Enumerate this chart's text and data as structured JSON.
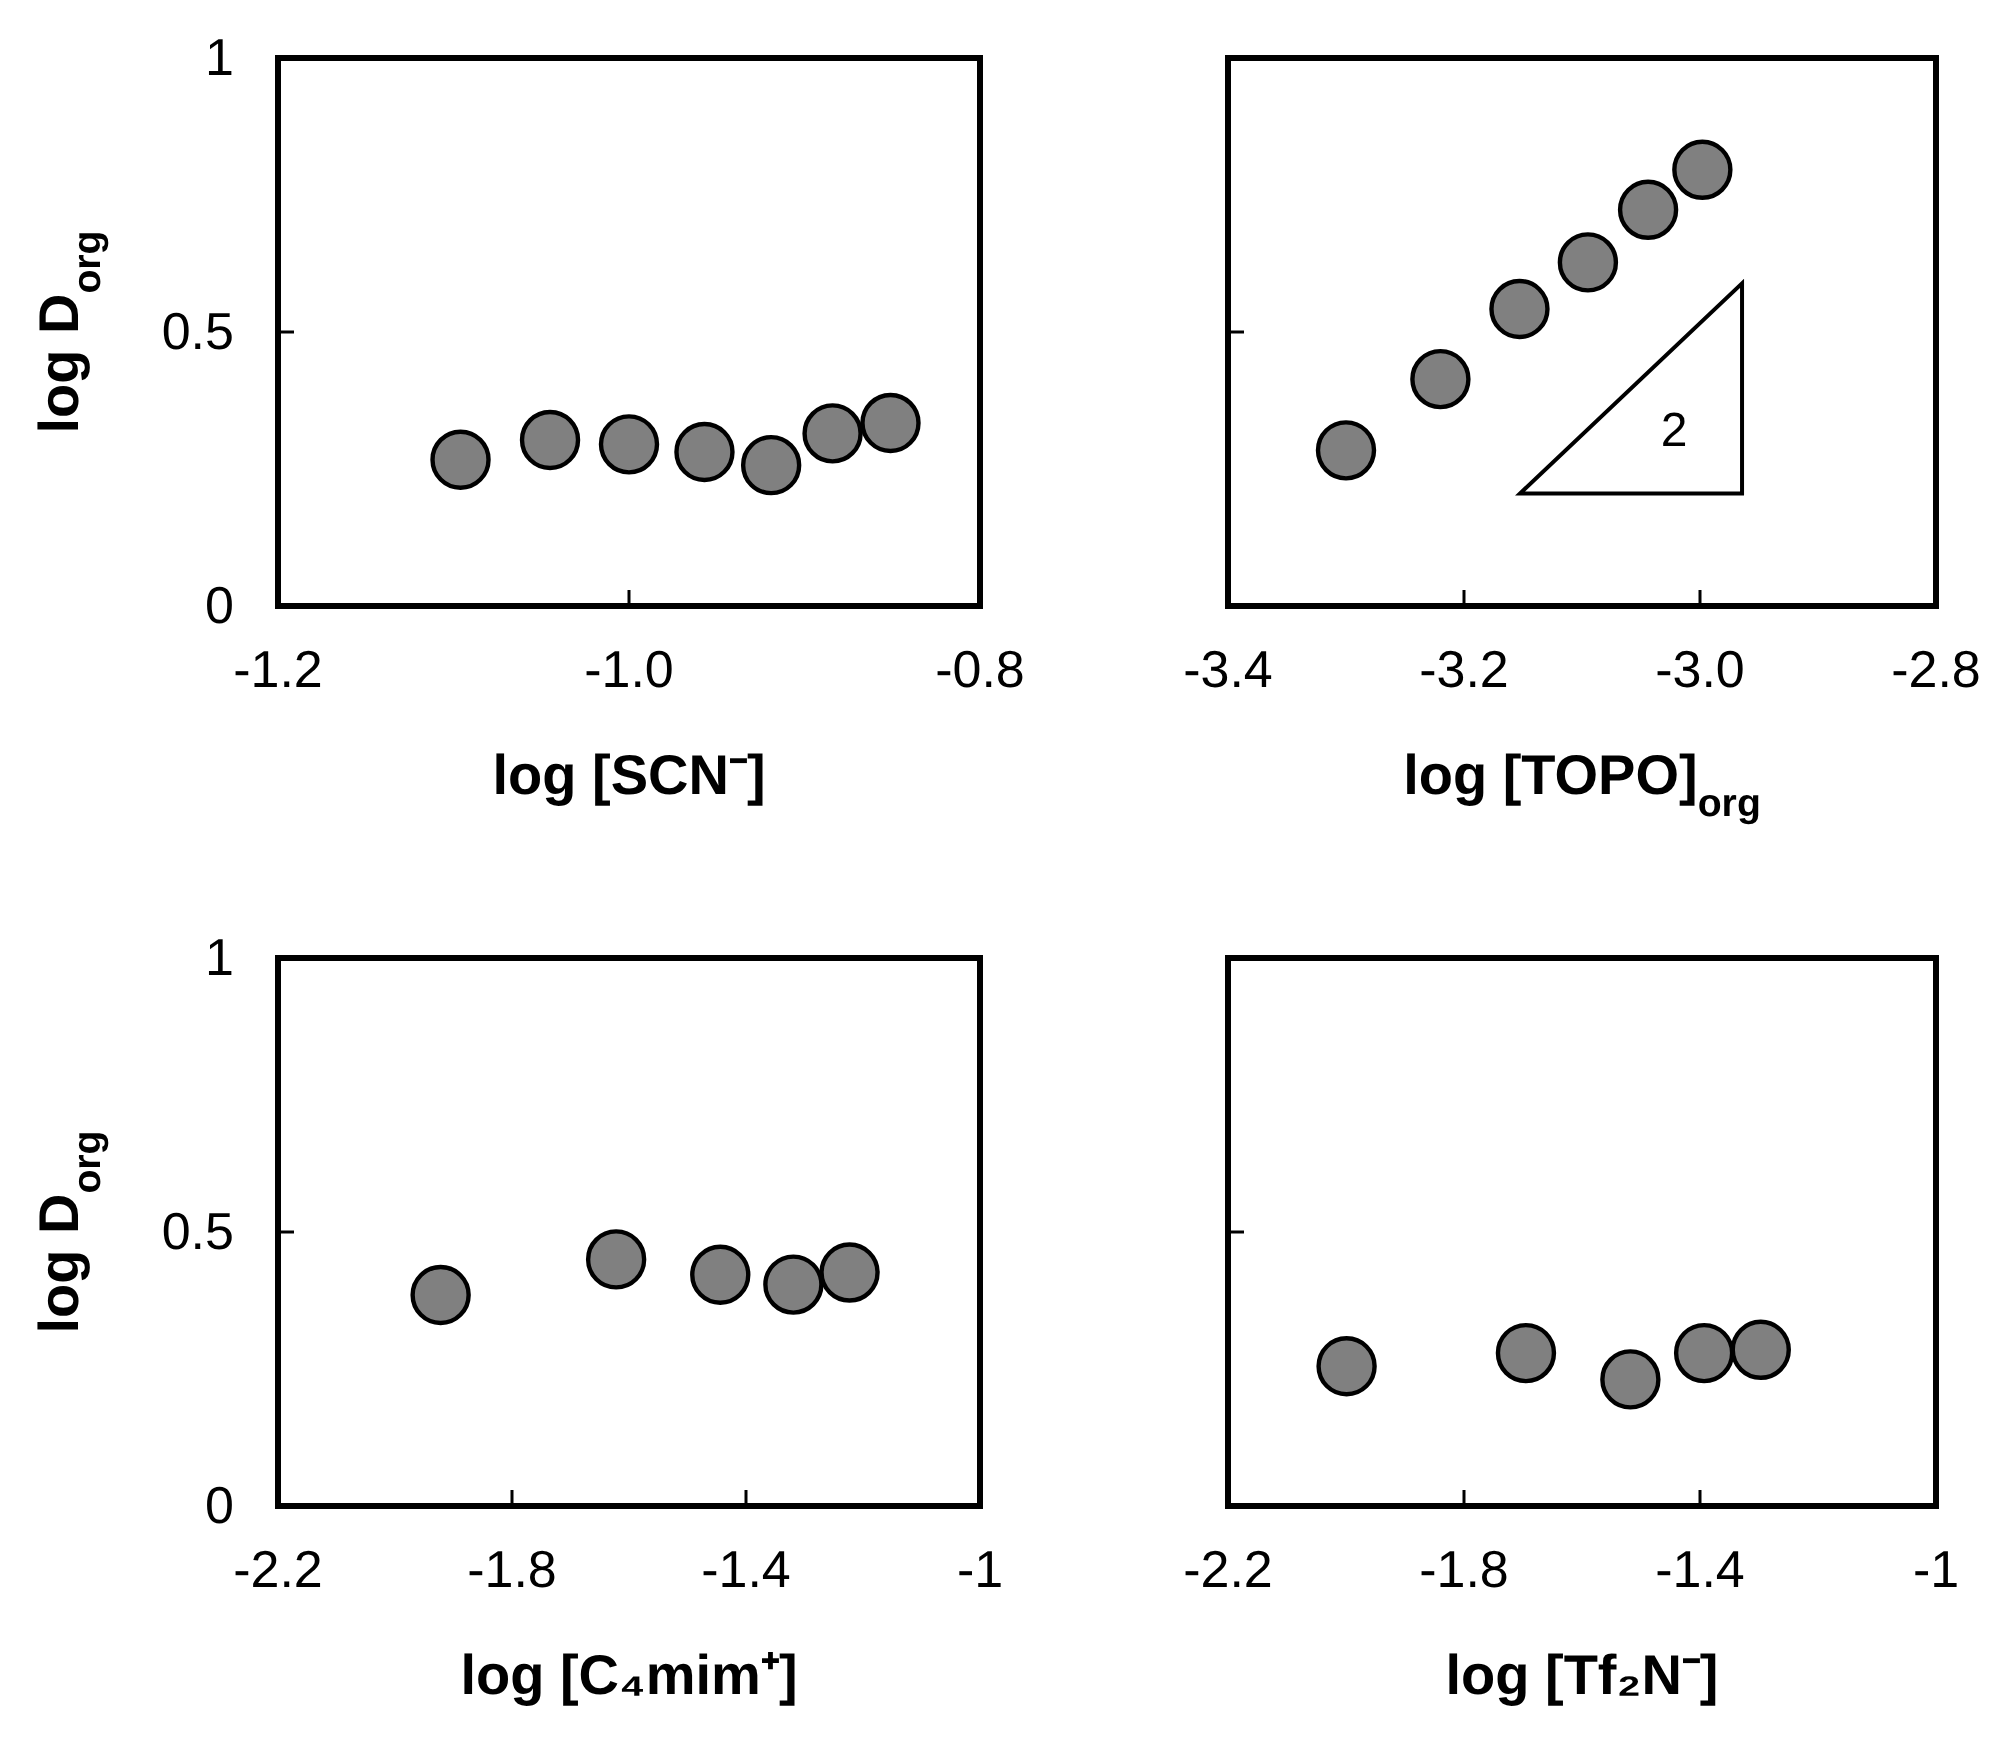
{
  "chart_data": [
    {
      "type": "scatter",
      "xlabel": "log [SCN⁻]",
      "ylabel": "log D$_{org}$",
      "marker": "circle",
      "xlim": [
        -1.2,
        -0.8
      ],
      "xticks": [
        -1.2,
        {
          "value": -1,
          "label": "-1.0"
        },
        -0.8
      ],
      "ylim": [
        0,
        1
      ],
      "yticks": [
        0,
        0.5,
        1
      ],
      "series": [
        {
          "color": "#808080",
          "x": [
            -1.096,
            -1.045,
            -1.0,
            -0.957,
            -0.919,
            -0.884,
            -0.851
          ],
          "values": [
            0.267,
            0.303,
            0.295,
            0.281,
            0.257,
            0.315,
            0.334
          ]
        }
      ]
    },
    {
      "type": "scatter",
      "xlabel": "log [TOPO]$_{org}$",
      "marker": "circle",
      "tick_labels": "x",
      "xlim": [
        -3.4,
        -2.8
      ],
      "xticks": [
        -3.4,
        -3.2,
        {
          "value": -3,
          "label": "-3.0"
        },
        -2.8
      ],
      "ylim": [
        0,
        1
      ],
      "yticks": [
        0,
        0.5,
        1
      ],
      "annotations": [
        "2"
      ],
      "series": [
        {
          "color": "#808080",
          "x": [
            -3.3,
            -3.22,
            -3.153,
            -3.095,
            -3.044,
            -2.998
          ],
          "values": [
            0.284,
            0.414,
            0.542,
            0.627,
            0.723,
            0.796
          ]
        }
      ]
    },
    {
      "type": "scatter",
      "xlabel": "log [C₄mim⁺]",
      "ylabel": "log D$_{org}$",
      "marker": "circle",
      "xlim": [
        -2.2,
        -1
      ],
      "xticks": [
        -2.2,
        -1.8,
        -1.4,
        -1
      ],
      "ylim": [
        0,
        1
      ],
      "yticks": [
        0,
        0.5,
        1
      ],
      "series": [
        {
          "color": "#808080",
          "x": [
            -1.922,
            -1.622,
            -1.444,
            -1.319,
            -1.223
          ],
          "values": [
            0.385,
            0.45,
            0.422,
            0.404,
            0.426
          ]
        }
      ]
    },
    {
      "type": "scatter",
      "xlabel": "log [Tf₂N⁻]",
      "marker": "circle",
      "tick_labels": "x",
      "xlim": [
        -2.2,
        -1
      ],
      "xticks": [
        -2.2,
        -1.8,
        -1.4,
        -1
      ],
      "ylim": [
        0,
        1
      ],
      "yticks": [
        0,
        0.5,
        1
      ],
      "series": [
        {
          "color": "#808080",
          "x": [
            -1.999,
            -1.695,
            -1.518,
            -1.393,
            -1.297
          ],
          "values": [
            0.255,
            0.279,
            0.231,
            0.279,
            0.285
          ]
        }
      ]
    }
  ]
}
